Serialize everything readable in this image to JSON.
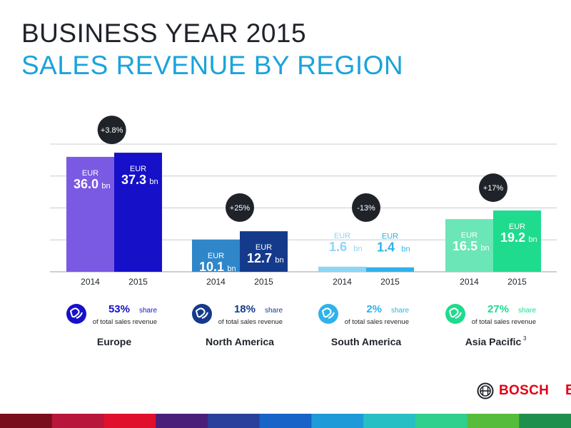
{
  "header": {
    "title": "BUSINESS YEAR 2015",
    "subtitle": "SALES REVENUE BY REGION"
  },
  "chart_data": {
    "type": "bar",
    "unit_prefix": "EUR",
    "unit_suffix": "bn",
    "share_suffix": "share",
    "share_caption": "of total sales revenue",
    "grid": true,
    "ylim": [
      0,
      40
    ],
    "categories": [
      "2014",
      "2015"
    ],
    "regions": [
      {
        "name": "Europe",
        "footnote": "",
        "values": [
          36.0,
          37.3
        ],
        "labels": [
          "36.0",
          "37.3"
        ],
        "change": "+3.8%",
        "share": "53%",
        "colors": [
          "#7a59e3",
          "#1710c9"
        ],
        "icon_color": "#1710c9"
      },
      {
        "name": "North America",
        "footnote": "",
        "values": [
          10.1,
          12.7
        ],
        "labels": [
          "10.1",
          "12.7"
        ],
        "change": "+25%",
        "share": "18%",
        "colors": [
          "#2f86c9",
          "#153a8c"
        ],
        "icon_color": "#153a8c"
      },
      {
        "name": "South America",
        "footnote": "",
        "values": [
          1.6,
          1.4
        ],
        "labels": [
          "1.6",
          "1.4"
        ],
        "change": "-13%",
        "share": "2%",
        "colors": [
          "#8fd5f5",
          "#2fb2ea"
        ],
        "icon_color": "#2fb2ea"
      },
      {
        "name": "Asia Pacific",
        "footnote": "3",
        "values": [
          16.5,
          19.2
        ],
        "labels": [
          "16.5",
          "19.2"
        ],
        "change": "+17%",
        "share": "27%",
        "colors": [
          "#6be6b6",
          "#1fdb8e"
        ],
        "icon_color": "#1fdb8e"
      }
    ]
  },
  "logo": {
    "text": "BOSCH",
    "color": "#e20015"
  },
  "edge_mark": "B",
  "bottom_strip_colors": [
    "#7a0d1c",
    "#b8163b",
    "#e0102d",
    "#4a1f7a",
    "#2a3f9c",
    "#1763c8",
    "#1e9ad8",
    "#26c0c4",
    "#2fcf8d",
    "#56bd3c",
    "#1f8f4d"
  ]
}
